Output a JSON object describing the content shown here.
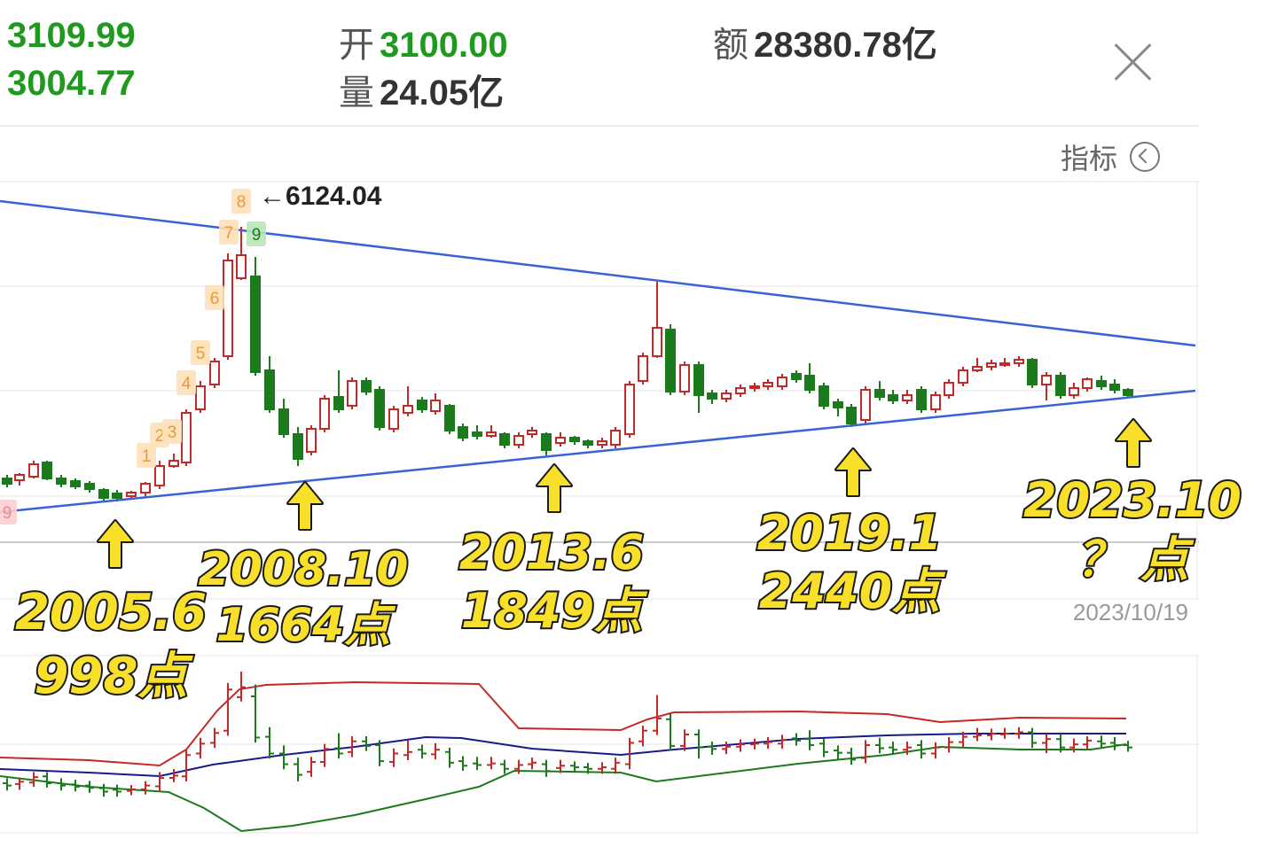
{
  "header": {
    "high": "3109.99",
    "low": "3004.77",
    "open_label": "开",
    "open_value": "3100.00",
    "volume_label": "量",
    "volume_value": "24.05亿",
    "amount_label": "额",
    "amount_value": "28380.78亿"
  },
  "toolbar": {
    "indicator_label": "指标"
  },
  "chart_data": {
    "type": "candlestick",
    "peak_label": "←6124.04",
    "date_label": "2023/10/19",
    "td_counts": [
      "9",
      "1",
      "2",
      "3",
      "4",
      "5",
      "6",
      "7",
      "8",
      "9"
    ],
    "annotations": [
      {
        "period": "2005.6",
        "value": "998点"
      },
      {
        "period": "2008.10",
        "value": "1664点"
      },
      {
        "period": "2013.6",
        "value": "1849点"
      },
      {
        "period": "2019.1",
        "value": "2440点"
      },
      {
        "period": "2023.10",
        "value": "？ 点"
      }
    ],
    "colors": {
      "up": "#c62828",
      "down": "#1b7a1b",
      "trendline": "#3a62d6",
      "annotation": "#f7df2a",
      "boll_upper": "#c62828",
      "boll_mid": "#1a1a8c",
      "boll_lower": "#1b7a1b"
    }
  }
}
